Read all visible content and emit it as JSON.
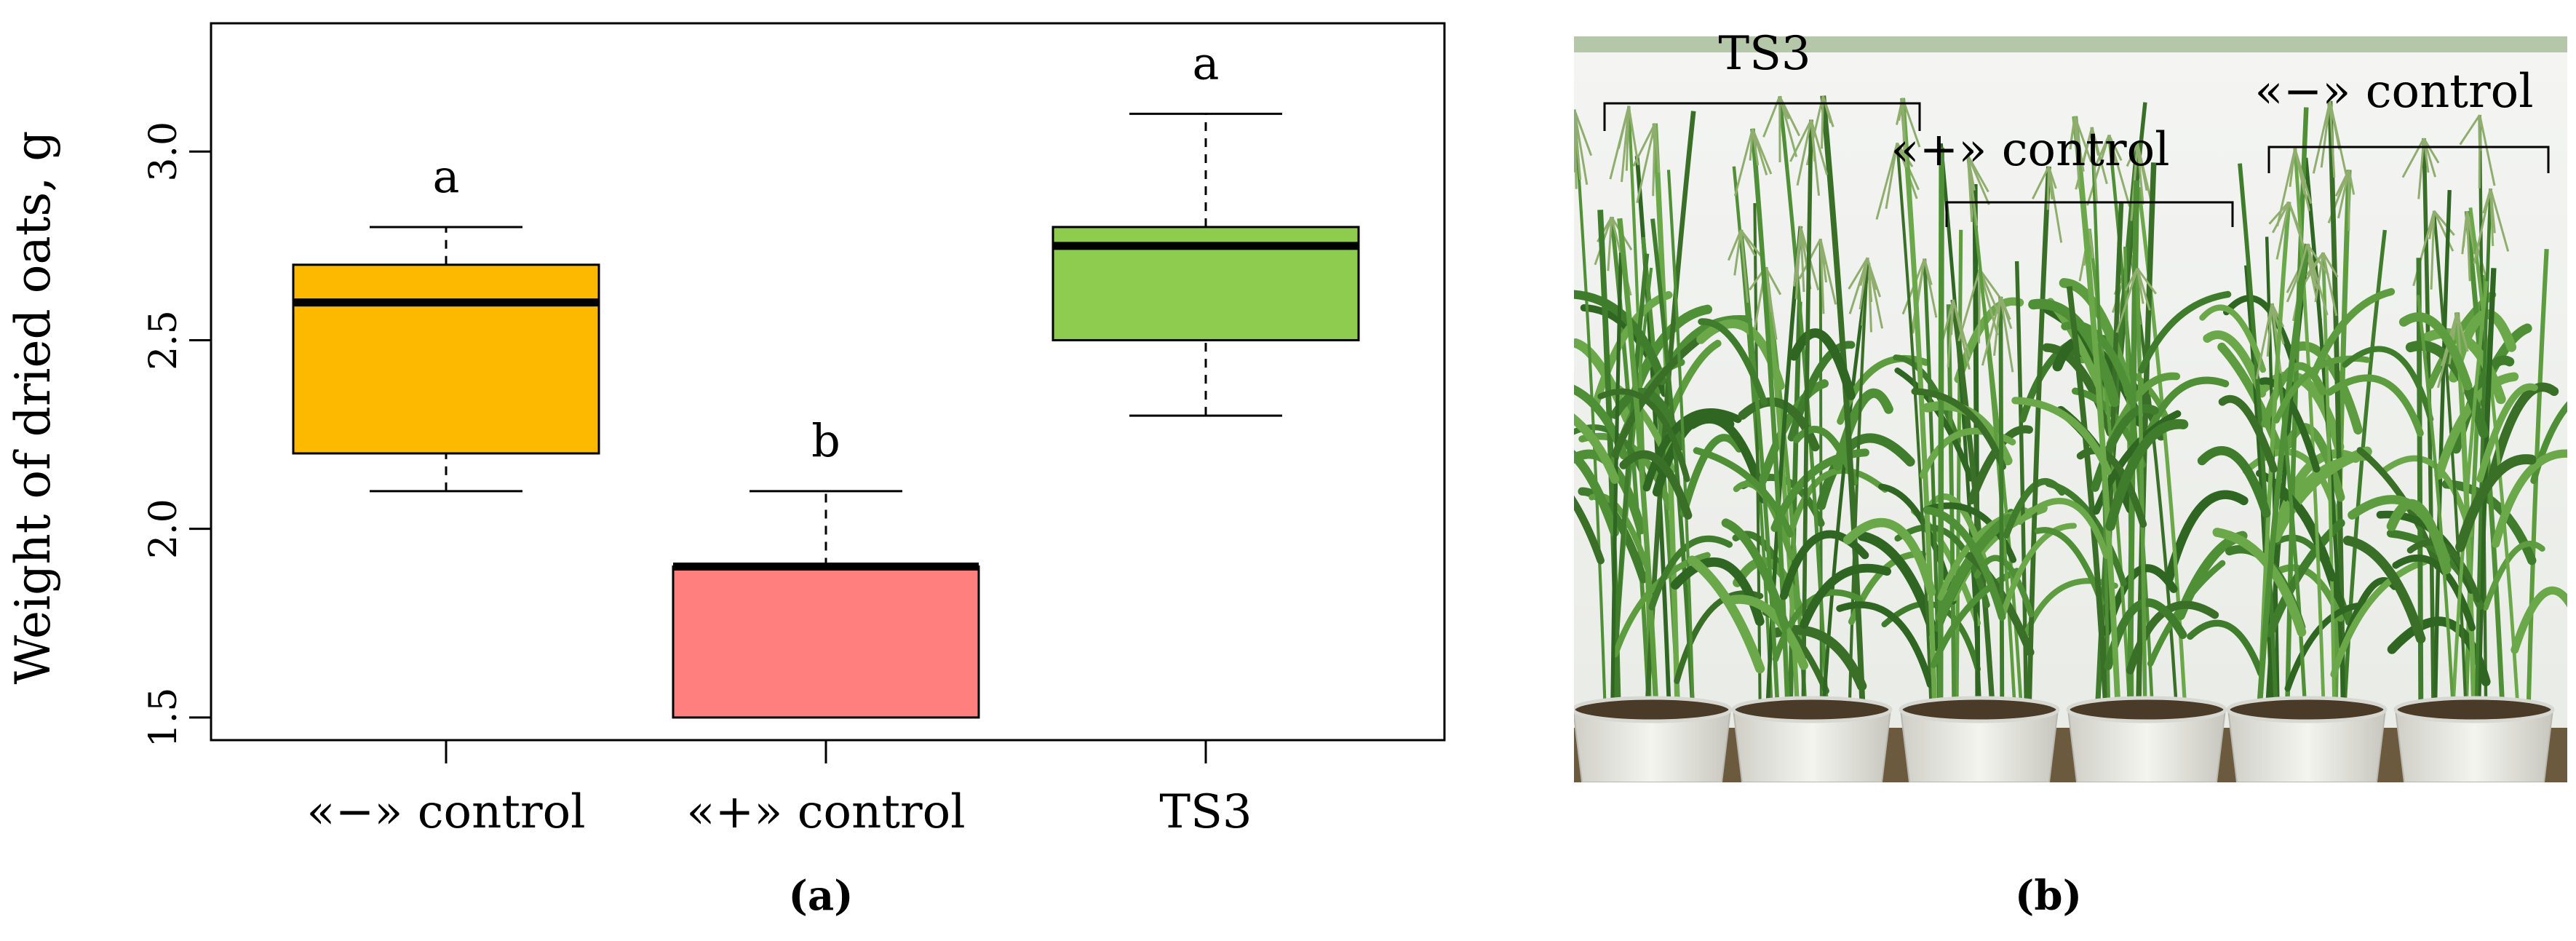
{
  "chart_data": {
    "type": "box",
    "ylabel": "Weight of dried  oats, g",
    "ylim": [
      1.44,
      3.34
    ],
    "yticks": [
      1.5,
      2.0,
      2.5,
      3.0
    ],
    "ytick_labels": [
      "1.5",
      "2.0",
      "2.5",
      "3.0"
    ],
    "categories": [
      "«−» control",
      "«+» control",
      "TS3"
    ],
    "boxes": [
      {
        "min": 2.1,
        "q1": 2.2,
        "median": 2.6,
        "q3": 2.7,
        "max": 2.8,
        "letter": "a",
        "color": "#FDB800"
      },
      {
        "min": 1.5,
        "q1": 1.5,
        "median": 1.9,
        "q3": 1.9,
        "max": 2.1,
        "letter": "b",
        "color": "#FF7F7F"
      },
      {
        "min": 2.3,
        "q1": 2.5,
        "median": 2.75,
        "q3": 2.8,
        "max": 3.1,
        "letter": "a",
        "color": "#8ECC50"
      }
    ],
    "grid": false
  },
  "photo": {
    "labels": [
      "TS3",
      "«+» control",
      "«−» control"
    ]
  },
  "panel_labels": {
    "a": "(a)",
    "b": "(b)"
  }
}
